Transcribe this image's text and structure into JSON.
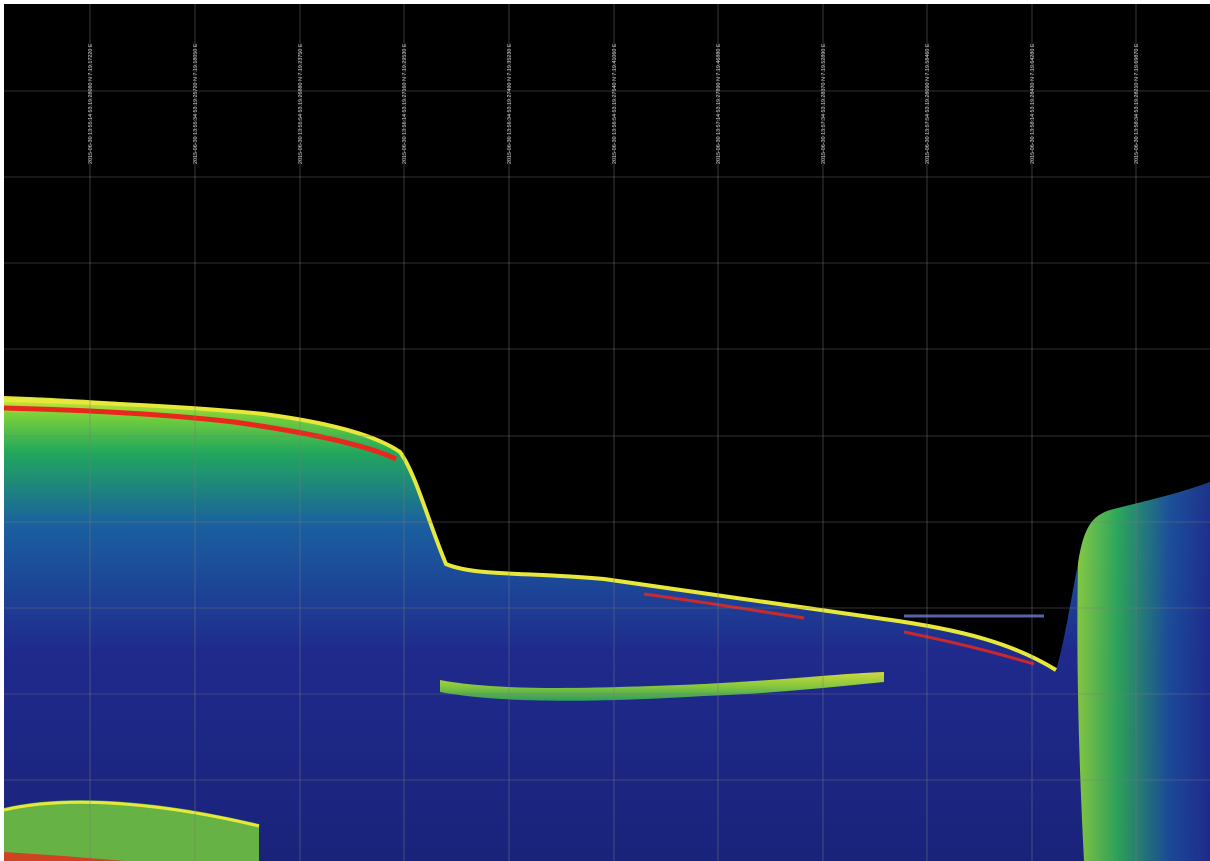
{
  "colors": {
    "background": "#000000",
    "grid": "#7a7a7a",
    "label": "#cfcfcf",
    "water": "#000000",
    "sediment_low": "#1f2a8c",
    "sediment_mid": "#1aa85a",
    "sediment_high": "#e8e83a",
    "seabed_peak": "#e8281c"
  },
  "track_labels": [
    "2015-06-30 13:55:14 53.19.28080 N 7.19.17220 E",
    "2015-06-30 13:55:34 53.19.25720 N 7.19.18050 E",
    "2015-06-30 13:55:54 53.19.26880 N 7.19.23750 E",
    "2015-06-30 13:56:14 53.19.27160 N 7.19.29530 E",
    "2015-06-30 13:56:34 53.19.27490 N 7.19.35230 E",
    "2015-06-30 13:56:54 53.19.27540 N 7.19.41060 E",
    "2015-06-30 13:57:14 53.19.27890 N 7.19.46880 E",
    "2015-06-30 13:57:34 53.19.28370 N 7.19.52890 E",
    "2015-06-30 13:57:54 53.19.28090 N 7.19.58460 E",
    "2015-06-30 13:58:14 53.19.28430 N 7.19.64280 E",
    "2015-06-30 13:58:34 53.19.28210 N 7.19.69870 E"
  ]
}
